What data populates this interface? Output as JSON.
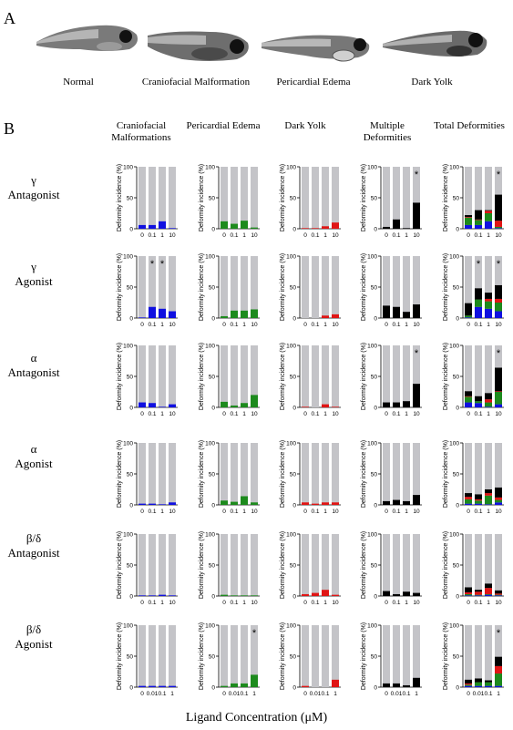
{
  "panel_a_letter": "A",
  "panel_b_letter": "B",
  "fish_labels": [
    "Normal",
    "Craniofacial Malformation",
    "Pericardial  Edema",
    "Dark Yolk"
  ],
  "column_headers": [
    "Craniofacial Malformations",
    "Pericardial Edema",
    "Dark Yolk",
    "Multiple Deformities",
    "Total Deformities"
  ],
  "row_headers": [
    [
      "γ",
      "Antagonist"
    ],
    [
      "γ",
      "Agonist"
    ],
    [
      "α",
      "Antagonist"
    ],
    [
      "α",
      "Agonist"
    ],
    [
      "β/δ",
      "Antagonist"
    ],
    [
      "β/δ",
      "Agonist"
    ]
  ],
  "x_axis_title": "Ligand Concentration (μM)",
  "chart_data": {
    "type": "bar",
    "ylabel": "Deformity incidence (%)",
    "ylim": [
      0,
      100
    ],
    "yticks": [
      0,
      50,
      100
    ],
    "colors": {
      "background_bar": "#c4c4c8",
      "craniofacial": "#1010e0",
      "pericardial": "#1d8a1d",
      "dark_yolk": "#e01515",
      "multiple": "#000000"
    },
    "stack_order": [
      "craniofacial",
      "pericardial",
      "dark_yolk",
      "multiple"
    ],
    "rows": [
      {
        "categories": [
          "0",
          "0.1",
          "1",
          "10"
        ],
        "craniofacial": [
          6,
          6,
          12,
          1
        ],
        "pericardial": [
          12,
          8,
          13,
          2
        ],
        "dark_yolk": [
          1,
          1,
          4,
          10
        ],
        "multiple": [
          3,
          15,
          1,
          42
        ],
        "multiple_sig": [
          false,
          false,
          false,
          true
        ],
        "total": [
          21,
          31,
          33,
          55
        ],
        "total_sig": [
          false,
          false,
          false,
          true
        ]
      },
      {
        "categories": [
          "0",
          "0.1",
          "1",
          "10"
        ],
        "craniofacial": [
          1,
          18,
          15,
          11
        ],
        "craniofacial_sig": [
          false,
          true,
          true,
          false
        ],
        "pericardial": [
          3,
          12,
          12,
          14
        ],
        "dark_yolk": [
          0,
          0,
          4,
          6
        ],
        "multiple": [
          20,
          18,
          10,
          22
        ],
        "total": [
          24,
          48,
          43,
          55
        ],
        "total_sig": [
          false,
          true,
          false,
          true
        ]
      },
      {
        "categories": [
          "0",
          "0.1",
          "1",
          "10"
        ],
        "craniofacial": [
          8,
          7,
          1,
          5
        ],
        "pericardial": [
          9,
          3,
          7,
          20
        ],
        "dark_yolk": [
          1,
          0,
          5,
          1
        ],
        "multiple": [
          8,
          8,
          10,
          38
        ],
        "multiple_sig": [
          false,
          false,
          false,
          true
        ],
        "total": [
          25,
          18,
          23,
          62
        ],
        "total_sig": [
          false,
          false,
          false,
          true
        ]
      },
      {
        "categories": [
          "0",
          "0.1",
          "1",
          "10"
        ],
        "craniofacial": [
          2,
          2,
          1,
          4
        ],
        "pericardial": [
          7,
          5,
          14,
          4
        ],
        "dark_yolk": [
          4,
          2,
          4,
          4
        ],
        "multiple": [
          6,
          8,
          6,
          16
        ],
        "total": [
          19,
          17,
          26,
          29
        ]
      },
      {
        "categories": [
          "0",
          "0.1",
          "1",
          "10"
        ],
        "craniofacial": [
          1,
          1,
          2,
          1
        ],
        "pericardial": [
          2,
          1,
          1,
          1
        ],
        "dark_yolk": [
          3,
          5,
          10,
          2
        ],
        "multiple": [
          8,
          3,
          7,
          5
        ],
        "total": [
          14,
          9,
          20,
          9
        ]
      },
      {
        "categories": [
          "0",
          "0.01",
          "0.1",
          "1"
        ],
        "craniofacial": [
          2,
          2,
          2,
          2
        ],
        "pericardial": [
          2,
          6,
          6,
          20
        ],
        "pericardial_sig": [
          false,
          false,
          false,
          true
        ],
        "dark_yolk": [
          2,
          0,
          0,
          12
        ],
        "multiple": [
          6,
          6,
          3,
          15
        ],
        "total": [
          14,
          12,
          14,
          49
        ],
        "total_sig": [
          false,
          false,
          false,
          true
        ]
      }
    ]
  }
}
